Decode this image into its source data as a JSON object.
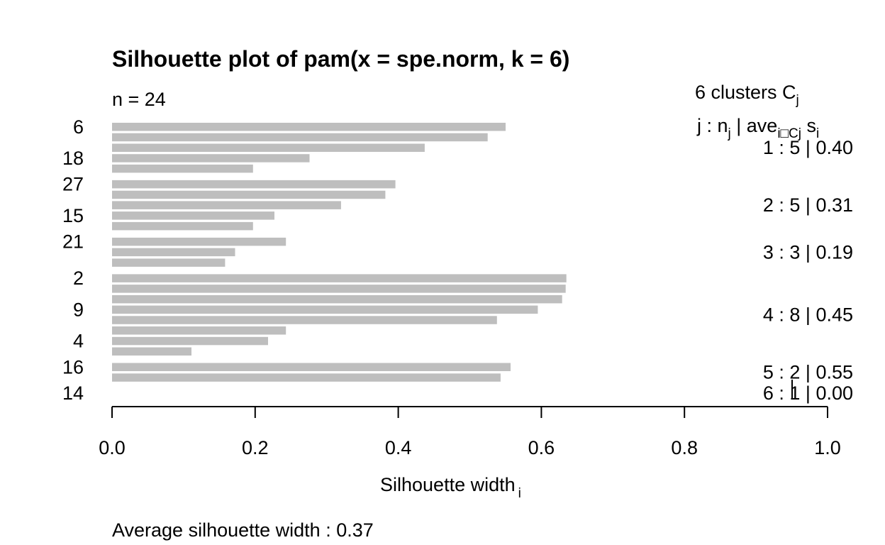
{
  "chart_data": {
    "type": "bar",
    "orientation": "horizontal",
    "title": "Silhouette plot of pam(x = spe.norm, k = 6)",
    "n_label": "n = 24",
    "xlabel": "Silhouette width",
    "xlabel_sub": "i",
    "xlim": [
      0,
      1
    ],
    "x_ticks": [
      "0.0",
      "0.2",
      "0.4",
      "0.6",
      "0.8",
      "1.0"
    ],
    "x_tick_values": [
      0,
      0.2,
      0.4,
      0.6,
      0.8,
      1.0
    ],
    "bar_color": "#bebebe",
    "header": {
      "clusters_text": "6  clusters  C",
      "clusters_sub": "j",
      "legend_j": "j :  n",
      "legend_j_sub": "j",
      "legend_ave": " | ave",
      "legend_ave_sub": "i□Cj",
      "legend_s": "  s",
      "legend_s_sub": "i"
    },
    "clusters": [
      {
        "label": "1 :   5  |  0.40",
        "values": [
          0.55,
          0.525,
          0.437,
          0.276,
          0.197
        ]
      },
      {
        "label": "2 :   5  |  0.31",
        "values": [
          0.396,
          0.382,
          0.32,
          0.227,
          0.197
        ]
      },
      {
        "label": "3 :   3  |  0.19",
        "values": [
          0.243,
          0.172,
          0.158
        ]
      },
      {
        "label": "4 :   8  |  0.45",
        "values": [
          0.635,
          0.634,
          0.629,
          0.595,
          0.538,
          0.243,
          0.218,
          0.111
        ]
      },
      {
        "label": "5 :   2  |  0.55",
        "values": [
          0.557,
          0.543
        ]
      },
      {
        "label": "6 :   1  |  0.00",
        "values": [
          0.0
        ]
      }
    ],
    "row_labels": [
      {
        "row": 1,
        "label": "6"
      },
      {
        "row": 4,
        "label": "18"
      },
      {
        "row": 6,
        "label": "27"
      },
      {
        "row": 9,
        "label": "15"
      },
      {
        "row": 11,
        "label": "21"
      },
      {
        "row": 14,
        "label": "2"
      },
      {
        "row": 17,
        "label": "9"
      },
      {
        "row": 20,
        "label": "4"
      },
      {
        "row": 22,
        "label": "16"
      },
      {
        "row": 24,
        "label": "14"
      }
    ],
    "footer": "Average silhouette width :  0.37"
  }
}
